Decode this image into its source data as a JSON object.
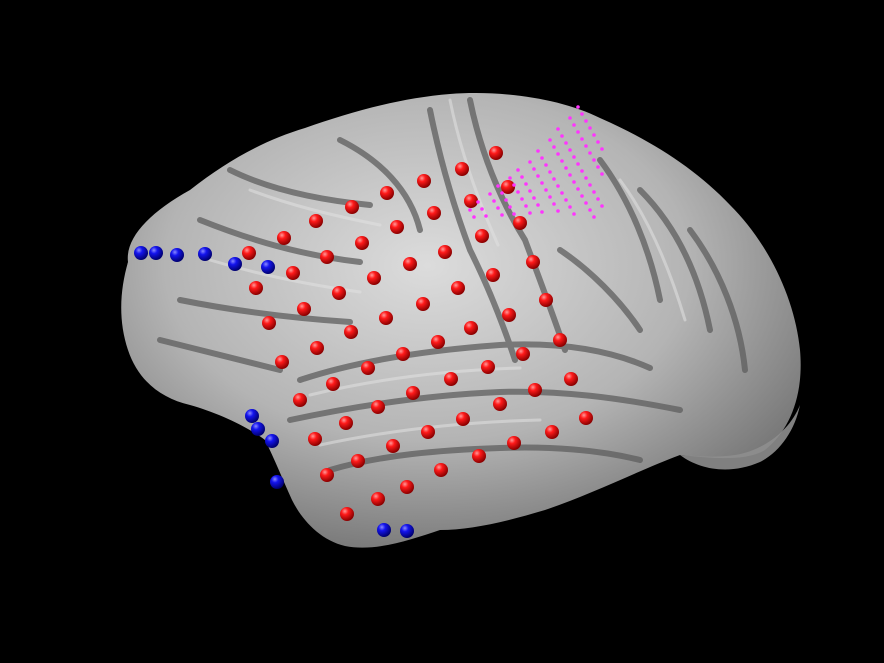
{
  "scene": {
    "background_color": "#000000",
    "subject": "brain-lateral-surface",
    "hemisphere_view": "left-lateral",
    "surface_color": "#bdbdbd",
    "surface_shadow_color": "#6e6e6e",
    "surface_highlight_color": "#e6e6e6"
  },
  "electrode_groups": [
    {
      "name": "red",
      "color": "#ff1a1a",
      "count": 74
    },
    {
      "name": "blue",
      "color": "#1010e6",
      "count": 16
    },
    {
      "name": "magenta-grid",
      "color": "#ff33ff",
      "count": 160
    }
  ]
}
